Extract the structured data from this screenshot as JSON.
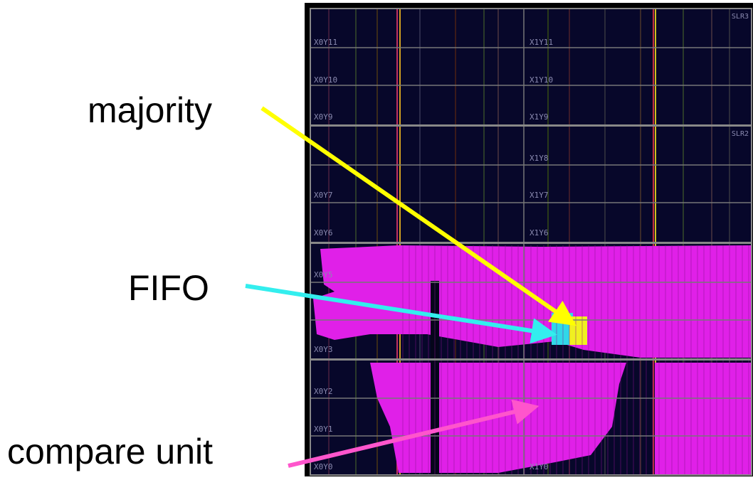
{
  "annotations": {
    "majority": "majority",
    "fifo": "FIFO",
    "compare": "compare unit"
  },
  "slr_labels": [
    "SLR3",
    "SLR2"
  ],
  "regions": [
    "X0Y11",
    "X1Y11",
    "X0Y10",
    "X1Y10",
    "X0Y9",
    "X1Y9",
    "X1Y8",
    "X0Y7",
    "X1Y7",
    "X0Y6",
    "X1Y6",
    "X0Y5",
    "X0Y3",
    "X0Y2",
    "X0Y1",
    "X0Y0",
    "X1Y0"
  ]
}
